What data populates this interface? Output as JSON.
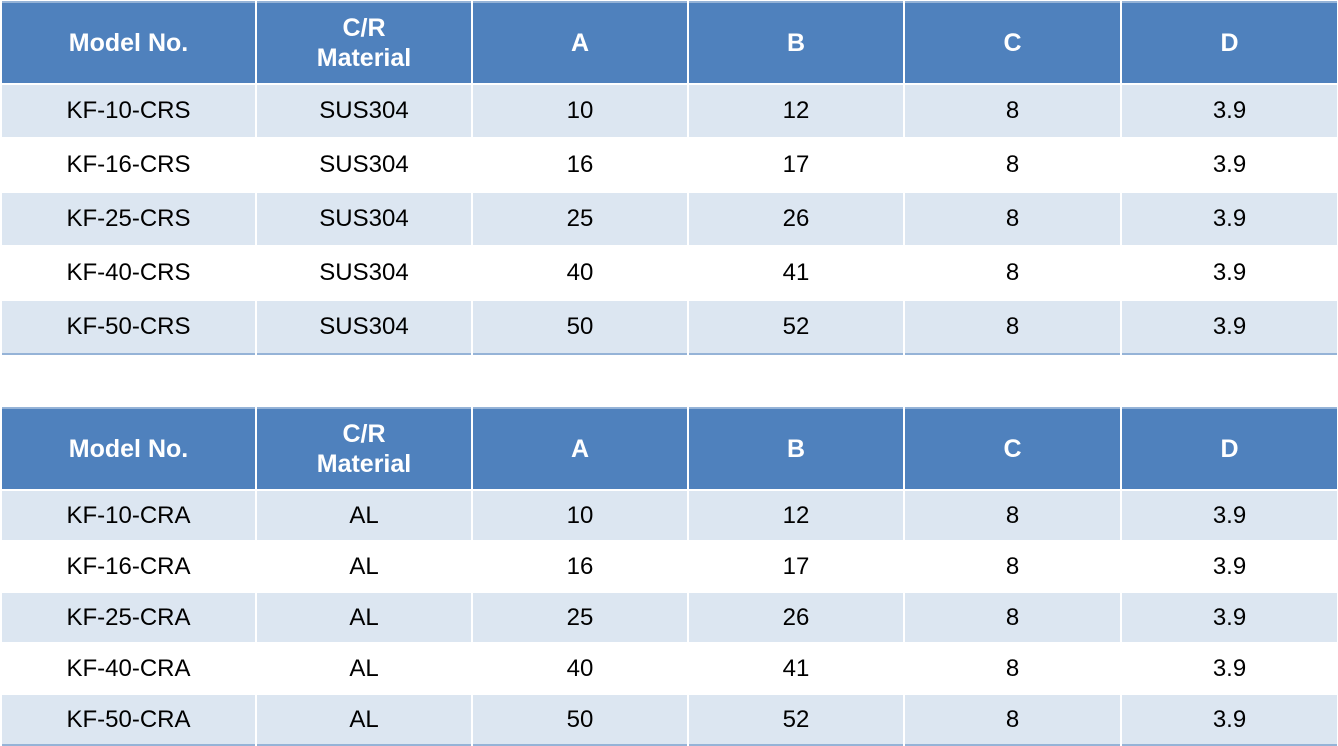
{
  "tables": [
    {
      "header": [
        "Model No.",
        "C/R Material",
        "A",
        "B",
        "C",
        "D"
      ],
      "rows": [
        [
          "KF-10-CRS",
          "SUS304",
          "10",
          "12",
          "8",
          "3.9"
        ],
        [
          "KF-16-CRS",
          "SUS304",
          "16",
          "17",
          "8",
          "3.9"
        ],
        [
          "KF-25-CRS",
          "SUS304",
          "25",
          "26",
          "8",
          "3.9"
        ],
        [
          "KF-40-CRS",
          "SUS304",
          "40",
          "41",
          "8",
          "3.9"
        ],
        [
          "KF-50-CRS",
          "SUS304",
          "50",
          "52",
          "8",
          "3.9"
        ]
      ]
    },
    {
      "header": [
        "Model No.",
        "C/R Material",
        "A",
        "B",
        "C",
        "D"
      ],
      "rows": [
        [
          "KF-10-CRA",
          "AL",
          "10",
          "12",
          "8",
          "3.9"
        ],
        [
          "KF-16-CRA",
          "AL",
          "16",
          "17",
          "8",
          "3.9"
        ],
        [
          "KF-25-CRA",
          "AL",
          "25",
          "26",
          "8",
          "3.9"
        ],
        [
          "KF-40-CRA",
          "AL",
          "40",
          "41",
          "8",
          "3.9"
        ],
        [
          "KF-50-CRA",
          "AL",
          "50",
          "52",
          "8",
          "3.9"
        ]
      ]
    }
  ]
}
